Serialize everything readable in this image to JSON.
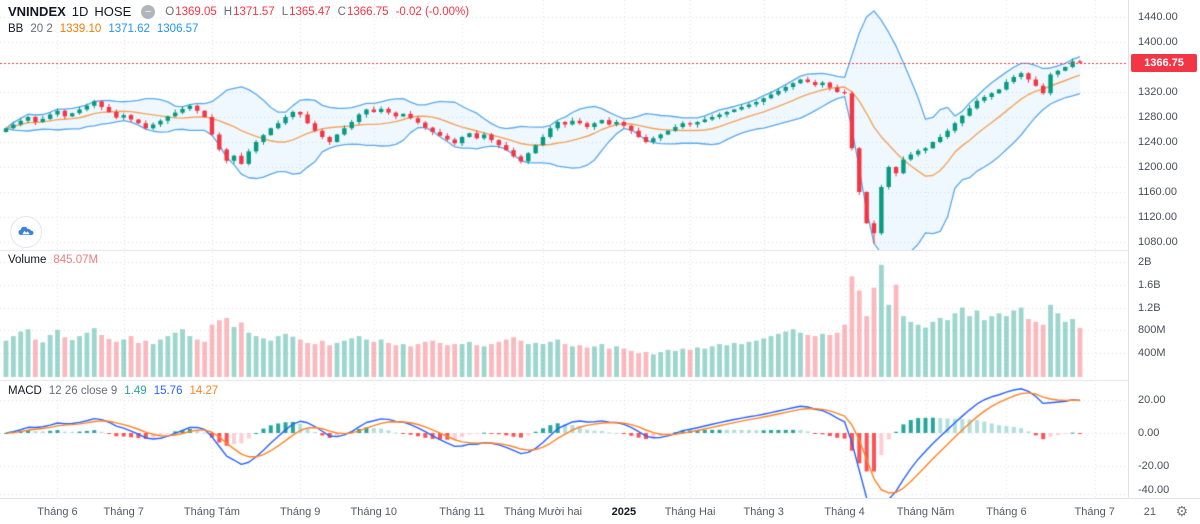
{
  "header": {
    "symbol": "VNINDEX",
    "interval": "1D",
    "exchange": "HOSE",
    "collapse_icon": "minus-circle",
    "ohlc": [
      {
        "k": "O",
        "v": "1369.05"
      },
      {
        "k": "H",
        "v": "1371.57"
      },
      {
        "k": "L",
        "v": "1365.47"
      },
      {
        "k": "C",
        "v": "1366.75"
      }
    ],
    "change": "-0.02 (-0.00%)"
  },
  "indicators": {
    "bb": {
      "name": "BB",
      "params": "20 2",
      "basis": "1339.10",
      "upper": "1371.62",
      "lower": "1306.57"
    },
    "volume": {
      "name": "Volume",
      "value": "845.07M"
    },
    "macd": {
      "name": "MACD",
      "params": "12 26 close 9",
      "hist": "1.49",
      "macd": "15.76",
      "signal": "14.27"
    }
  },
  "price_badge": "1366.75",
  "colors": {
    "up": "#089981",
    "down": "#f23645",
    "vol_up": "rgba(8,153,129,0.40)",
    "vol_down": "rgba(242,54,69,0.35)",
    "bb_line": "#5aa9ec",
    "bb_fill": "rgba(33,150,243,0.07)",
    "bb_basis": "#f5a35c",
    "macd_line": "#2962ff",
    "macd_signal": "#ff8326",
    "hist": [
      "#26a69a",
      "#b2dfdb",
      "#ff5252",
      "#ffcdd2"
    ],
    "price_line": "#f23645",
    "grid": "rgba(145,152,170,0.28)",
    "axis_text": "#4a4e59"
  },
  "chart_data": {
    "type": "candlestick",
    "title": "VNINDEX 1D HOSE",
    "panes": [
      "price+bollinger(20,2)",
      "volume",
      "macd(12,26,9)"
    ],
    "resolution_note": "approx. 2 trading days per point, Jun 2024 - Jun 2025, values read from chart",
    "ylim": [
      1067,
      1467
    ],
    "closes": [
      1262,
      1268,
      1274,
      1280,
      1272,
      1277,
      1284,
      1290,
      1281,
      1286,
      1292,
      1298,
      1305,
      1296,
      1288,
      1279,
      1283,
      1276,
      1270,
      1262,
      1268,
      1274,
      1281,
      1287,
      1293,
      1298,
      1290,
      1280,
      1252,
      1228,
      1210,
      1218,
      1205,
      1225,
      1240,
      1251,
      1262,
      1270,
      1280,
      1288,
      1284,
      1270,
      1258,
      1248,
      1240,
      1252,
      1262,
      1272,
      1284,
      1292,
      1288,
      1293,
      1287,
      1281,
      1285,
      1278,
      1271,
      1263,
      1256,
      1250,
      1244,
      1238,
      1248,
      1254,
      1246,
      1252,
      1243,
      1235,
      1227,
      1217,
      1209,
      1222,
      1235,
      1248,
      1262,
      1272,
      1268,
      1274,
      1270,
      1264,
      1270,
      1275,
      1268,
      1272,
      1266,
      1258,
      1248,
      1240,
      1246,
      1252,
      1258,
      1264,
      1270,
      1268,
      1272,
      1276,
      1280,
      1284,
      1288,
      1292,
      1296,
      1300,
      1304,
      1310,
      1316,
      1322,
      1328,
      1334,
      1340,
      1336,
      1331,
      1335,
      1327,
      1320,
      1318,
      1230,
      1160,
      1110,
      1094,
      1168,
      1200,
      1190,
      1212,
      1220,
      1226,
      1230,
      1240,
      1248,
      1258,
      1270,
      1282,
      1294,
      1306,
      1312,
      1318,
      1324,
      1336,
      1344,
      1350,
      1340,
      1330,
      1318,
      1348,
      1354,
      1360,
      1369,
      1366.75
    ],
    "volumes_m": [
      620,
      700,
      780,
      820,
      640,
      590,
      720,
      810,
      680,
      630,
      700,
      760,
      840,
      720,
      650,
      600,
      640,
      700,
      580,
      620,
      560,
      640,
      700,
      760,
      820,
      700,
      640,
      600,
      900,
      980,
      1020,
      860,
      940,
      760,
      700,
      660,
      620,
      700,
      740,
      690,
      640,
      580,
      560,
      620,
      540,
      580,
      620,
      660,
      700,
      640,
      600,
      640,
      580,
      540,
      560,
      520,
      560,
      600,
      620,
      580,
      540,
      560,
      560,
      600,
      540,
      520,
      560,
      600,
      640,
      680,
      620,
      560,
      580,
      560,
      600,
      640,
      560,
      520,
      540,
      500,
      520,
      560,
      480,
      520,
      480,
      440,
      400,
      420,
      380,
      420,
      460,
      440,
      480,
      460,
      500,
      480,
      520,
      560,
      540,
      580,
      560,
      600,
      620,
      660,
      700,
      740,
      780,
      820,
      760,
      720,
      700,
      740,
      720,
      760,
      900,
      1750,
      1500,
      1050,
      1550,
      1950,
      1250,
      1600,
      1050,
      950,
      900,
      850,
      950,
      1020,
      980,
      1100,
      1200,
      1050,
      1150,
      980,
      1050,
      1100,
      1050,
      1150,
      1200,
      1000,
      950,
      900,
      1250,
      1100,
      950,
      1000,
      845
    ],
    "last_bar": {
      "open": 1369.05,
      "high": 1371.57,
      "low": 1365.47,
      "close": 1366.75
    },
    "price_ticks": [
      {
        "label": "1440.00",
        "v": 1440
      },
      {
        "label": "1400.00",
        "v": 1400
      },
      {
        "label": "1360.00",
        "v": 1360
      },
      {
        "label": "1320.00",
        "v": 1320
      },
      {
        "label": "1280.00",
        "v": 1280
      },
      {
        "label": "1240.00",
        "v": 1240
      },
      {
        "label": "1200.00",
        "v": 1200
      },
      {
        "label": "1160.00",
        "v": 1160
      },
      {
        "label": "1120.00",
        "v": 1120
      },
      {
        "label": "1080.00",
        "v": 1080
      }
    ],
    "volume_ticks": [
      {
        "label": "2B",
        "v": 2000
      },
      {
        "label": "1.6B",
        "v": 1600
      },
      {
        "label": "1.2B",
        "v": 1200
      },
      {
        "label": "800M",
        "v": 800
      },
      {
        "label": "400M",
        "v": 400
      }
    ],
    "macd_ticks": [
      {
        "label": "20.00",
        "v": 20
      },
      {
        "label": "0.00",
        "v": 0
      },
      {
        "label": "-20.00",
        "v": -20
      },
      {
        "label": "-40.00",
        "v": -40
      }
    ],
    "time_ticks": [
      {
        "label": "Tháng 6",
        "i": 7
      },
      {
        "label": "Tháng 7",
        "i": 16
      },
      {
        "label": "Tháng Tám",
        "i": 28
      },
      {
        "label": "Tháng 9",
        "i": 40
      },
      {
        "label": "Tháng 10",
        "i": 50
      },
      {
        "label": "Tháng 11",
        "i": 62
      },
      {
        "label": "Tháng Mười hai",
        "i": 73
      },
      {
        "label": "2025",
        "i": 84,
        "strong": true
      },
      {
        "label": "Tháng Hai",
        "i": 93
      },
      {
        "label": "Tháng 3",
        "i": 103
      },
      {
        "label": "Tháng 4",
        "i": 114
      },
      {
        "label": "Tháng Năm",
        "i": 125
      },
      {
        "label": "Tháng 6",
        "i": 136
      },
      {
        "label": "Tháng 7",
        "i": 148
      },
      {
        "label": "21",
        "i": 155.5
      }
    ],
    "gear_icon": "⚙",
    "compute": {
      "bb_window": 11,
      "bb_mult": 2,
      "macd": [
        7,
        15,
        5
      ]
    }
  }
}
